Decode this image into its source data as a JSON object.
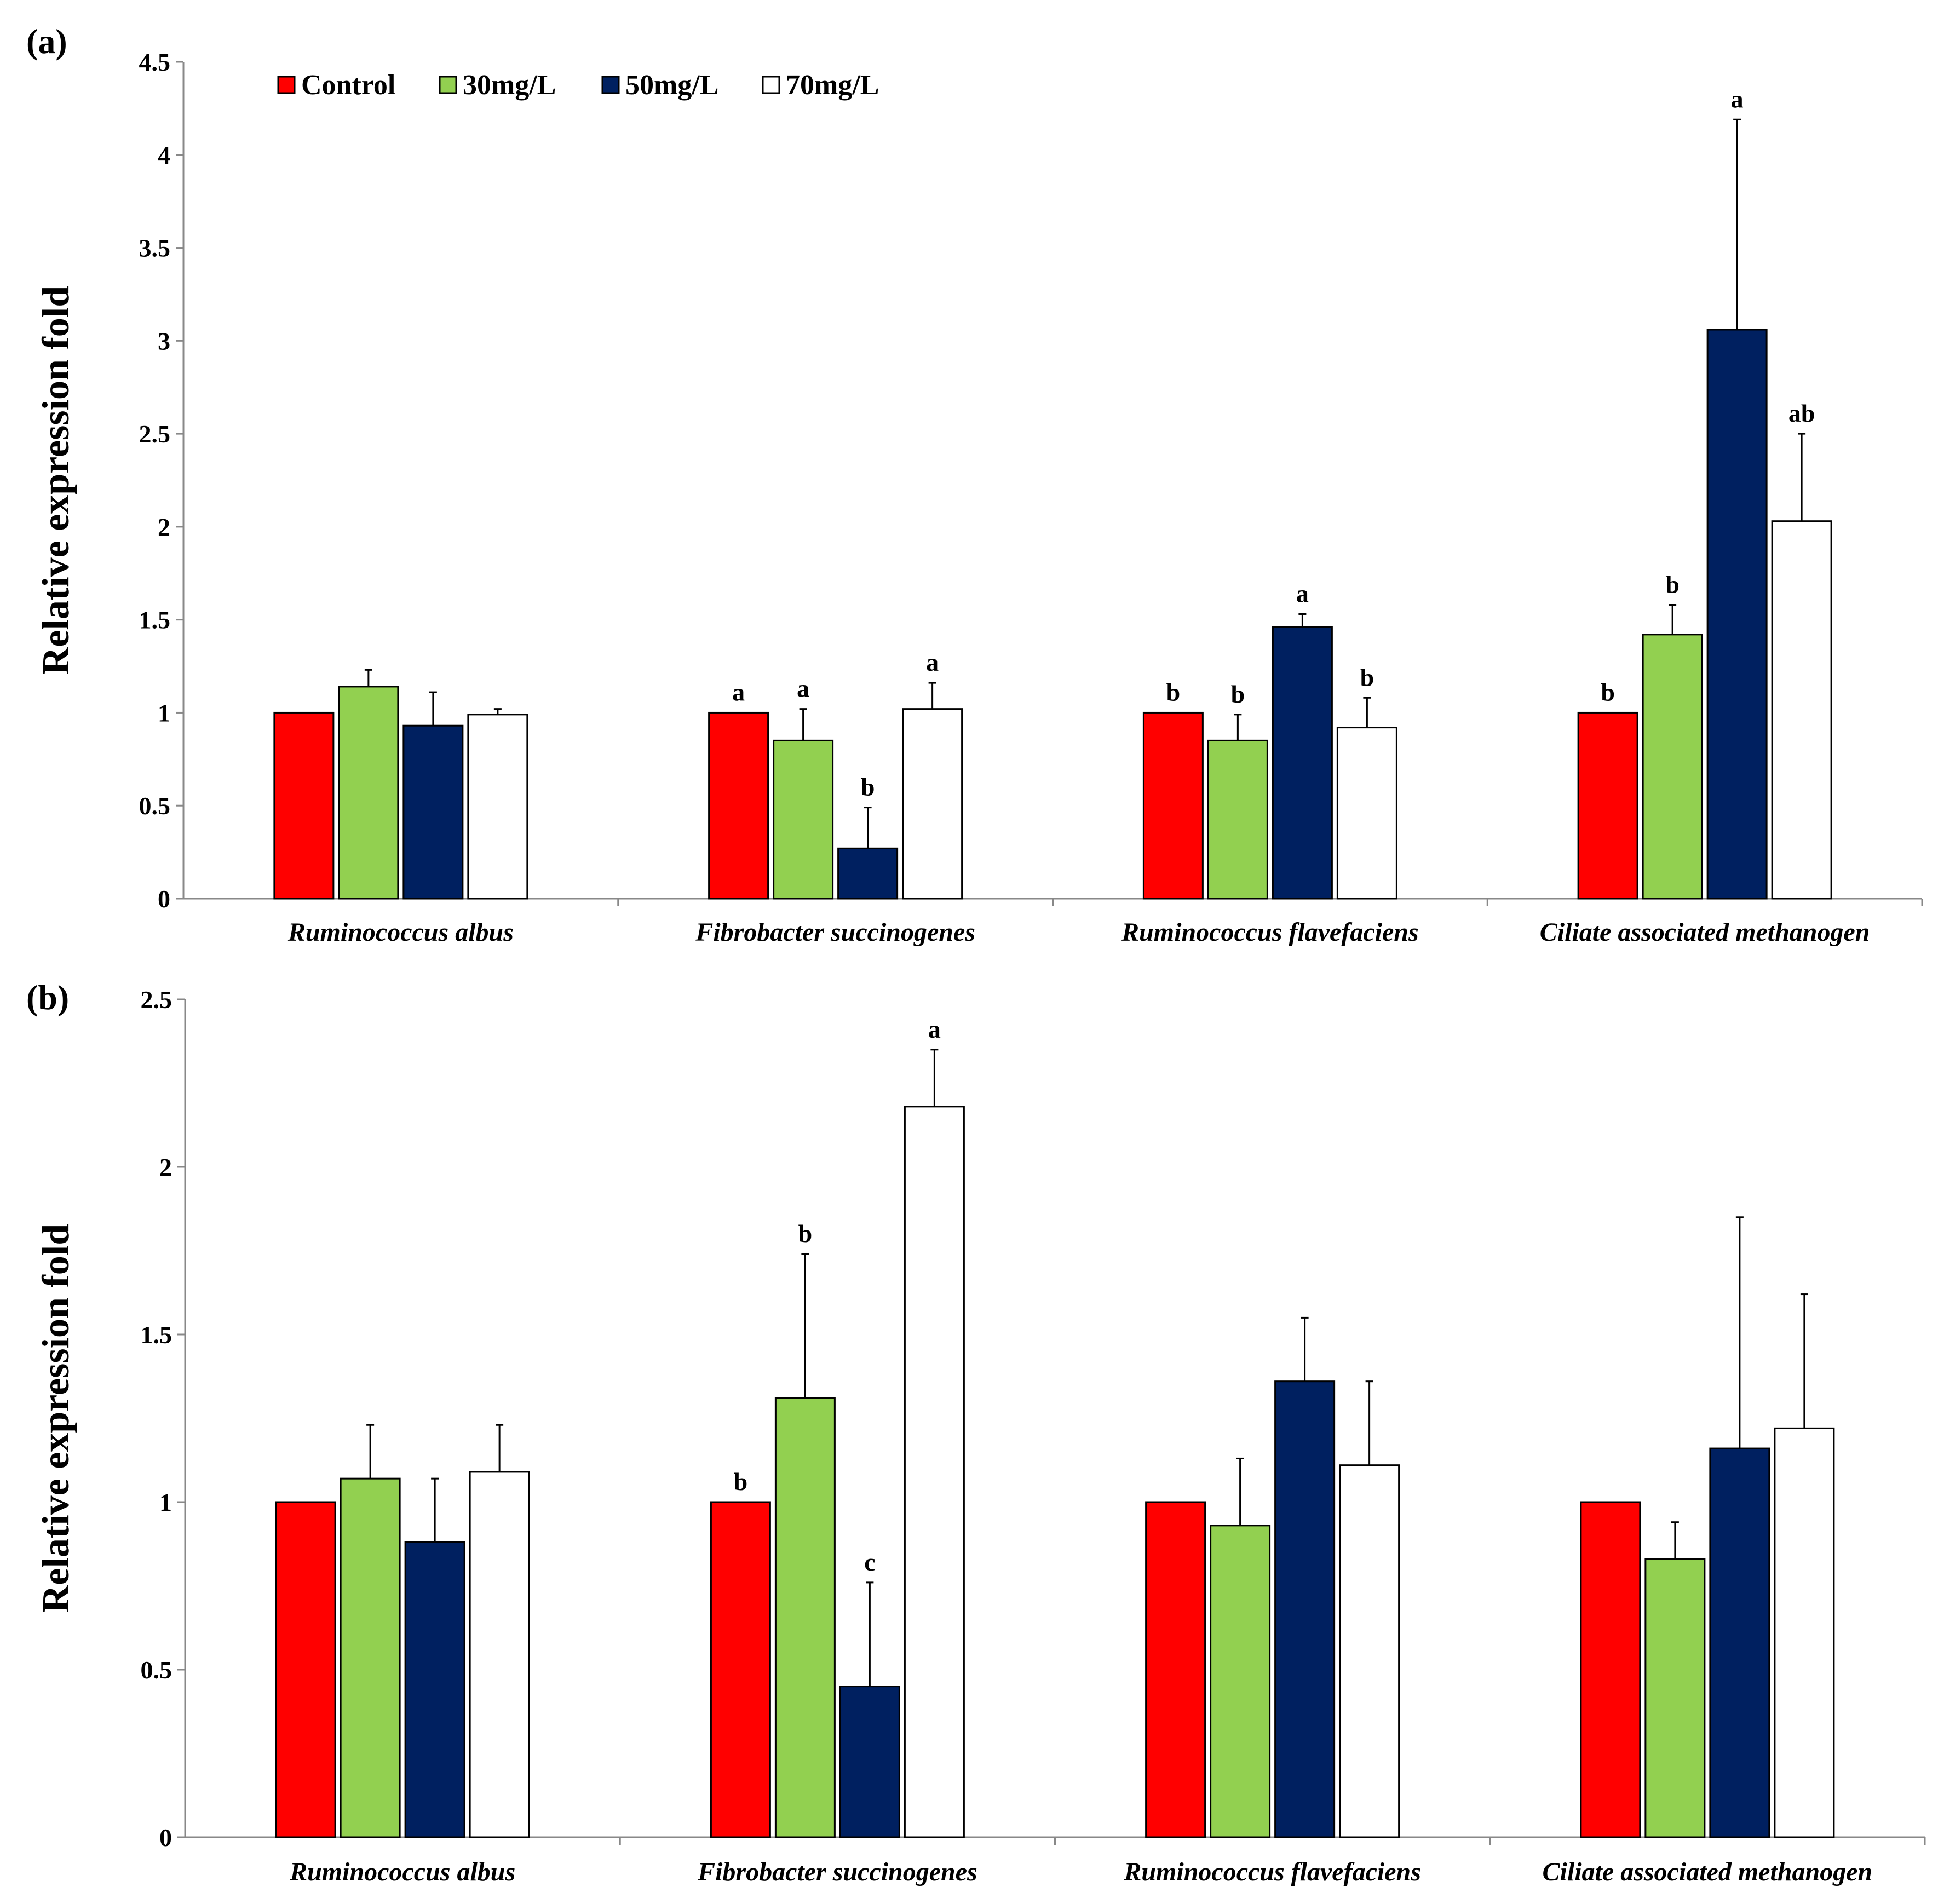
{
  "legend": [
    {
      "label": "Control",
      "color": "#ff0000"
    },
    {
      "label": "30mg/L",
      "color": "#92d050"
    },
    {
      "label": "50mg/L",
      "color": "#002060"
    },
    {
      "label": "70mg/L",
      "color": "#ffffff"
    }
  ],
  "chart_data": [
    {
      "type": "bar",
      "panel_label": "(a)",
      "ylabel": "Relative expression fold",
      "ylim": [
        0,
        4.5
      ],
      "yticks": [
        "0",
        "0.5",
        "1",
        "1.5",
        "2",
        "2.5",
        "3",
        "3.5",
        "4",
        "4.5"
      ],
      "categories": [
        "Ruminococcus albus",
        "Fibrobacter succinogenes",
        "Ruminococcus flavefaciens",
        "Ciliate associated methanogen"
      ],
      "series": [
        {
          "name": "Control",
          "values": [
            1.0,
            1.0,
            1.0,
            1.0
          ],
          "errors": [
            0,
            0,
            0,
            0
          ],
          "letters": [
            "",
            "a",
            "b",
            "b"
          ]
        },
        {
          "name": "30mg/L",
          "values": [
            1.14,
            0.85,
            0.85,
            1.42
          ],
          "errors": [
            0.09,
            0.17,
            0.14,
            0.16
          ],
          "letters": [
            "",
            "a",
            "b",
            "b"
          ]
        },
        {
          "name": "50mg/L",
          "values": [
            0.93,
            0.27,
            1.46,
            3.06
          ],
          "errors": [
            0.18,
            0.22,
            0.07,
            1.13
          ],
          "letters": [
            "",
            "b",
            "a",
            "a"
          ]
        },
        {
          "name": "70mg/L",
          "values": [
            0.99,
            1.02,
            0.92,
            2.03
          ],
          "errors": [
            0.03,
            0.14,
            0.16,
            0.47
          ],
          "letters": [
            "",
            "a",
            "b",
            "ab"
          ]
        }
      ]
    },
    {
      "type": "bar",
      "panel_label": "(b)",
      "ylabel": "Relative expression fold",
      "ylim": [
        0,
        2.5
      ],
      "yticks": [
        "0",
        "0.5",
        "1",
        "1.5",
        "2",
        "2.5"
      ],
      "categories": [
        "Ruminococcus albus",
        "Fibrobacter succinogenes",
        "Ruminococcus flavefaciens",
        "Ciliate associated methanogen"
      ],
      "series": [
        {
          "name": "Control",
          "values": [
            1.0,
            1.0,
            1.0,
            1.0
          ],
          "errors": [
            0,
            0,
            0,
            0
          ],
          "letters": [
            "",
            "b",
            "",
            ""
          ]
        },
        {
          "name": "30mg/L",
          "values": [
            1.07,
            1.31,
            0.93,
            0.83
          ],
          "errors": [
            0.16,
            0.43,
            0.2,
            0.11
          ],
          "letters": [
            "",
            "b",
            "",
            ""
          ]
        },
        {
          "name": "50mg/L",
          "values": [
            0.88,
            0.45,
            1.36,
            1.16
          ],
          "errors": [
            0.19,
            0.31,
            0.19,
            0.69
          ],
          "letters": [
            "",
            "c",
            "",
            ""
          ]
        },
        {
          "name": "70mg/L",
          "values": [
            1.09,
            2.18,
            1.11,
            1.22
          ],
          "errors": [
            0.14,
            0.17,
            0.25,
            0.4
          ],
          "letters": [
            "",
            "a",
            "",
            ""
          ]
        }
      ]
    }
  ]
}
